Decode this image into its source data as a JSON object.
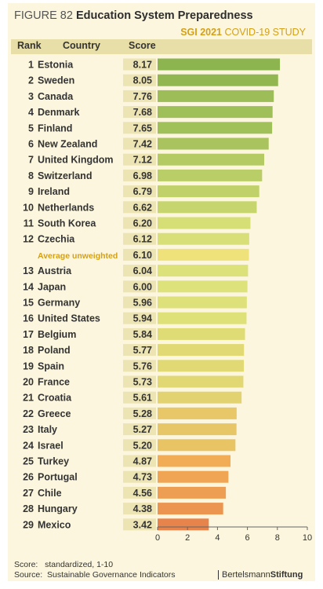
{
  "figure": {
    "number": "FIGURE 82",
    "title": "Education System Preparedness",
    "subtitle_bold": "SGI 2021",
    "subtitle_rest": "COVID-19 STUDY"
  },
  "columns": {
    "rank": "Rank",
    "country": "Country",
    "score": "Score"
  },
  "chart_data": {
    "type": "bar",
    "orientation": "horizontal",
    "title": "Education System Preparedness",
    "categories": [
      "Estonia",
      "Sweden",
      "Canada",
      "Denmark",
      "Finland",
      "New Zealand",
      "United Kingdom",
      "Switzerland",
      "Ireland",
      "Netherlands",
      "South Korea",
      "Czechia",
      "Average unweighted",
      "Austria",
      "Japan",
      "Germany",
      "United States",
      "Belgium",
      "Poland",
      "Spain",
      "France",
      "Croatia",
      "Greece",
      "Italy",
      "Israel",
      "Turkey",
      "Portugal",
      "Chile",
      "Hungary",
      "Mexico"
    ],
    "ranks": [
      "1",
      "2",
      "3",
      "4",
      "5",
      "6",
      "7",
      "8",
      "9",
      "10",
      "11",
      "12",
      "",
      "13",
      "14",
      "15",
      "16",
      "17",
      "18",
      "19",
      "20",
      "21",
      "22",
      "23",
      "24",
      "25",
      "26",
      "27",
      "28",
      "29"
    ],
    "values": [
      8.17,
      8.05,
      7.76,
      7.68,
      7.65,
      7.42,
      7.12,
      6.98,
      6.79,
      6.62,
      6.2,
      6.12,
      6.1,
      6.04,
      6.0,
      5.96,
      5.94,
      5.84,
      5.77,
      5.76,
      5.73,
      5.61,
      5.28,
      5.27,
      5.2,
      4.87,
      4.73,
      4.56,
      4.38,
      3.42
    ],
    "value_labels": [
      "8.17",
      "8.05",
      "7.76",
      "7.68",
      "7.65",
      "7.42",
      "7.12",
      "6.98",
      "6.79",
      "6.62",
      "6.20",
      "6.12",
      "6.10",
      "6.04",
      "6.00",
      "5.96",
      "5.94",
      "5.84",
      "5.77",
      "5.76",
      "5.73",
      "5.61",
      "5.28",
      "5.27",
      "5.20",
      "4.87",
      "4.73",
      "4.56",
      "4.38",
      "3.42"
    ],
    "highlight_index": 12,
    "xlim": [
      0,
      10
    ],
    "xticks": [
      "0",
      "2",
      "4",
      "6",
      "8",
      "10"
    ],
    "grid": false,
    "colors": {
      "high": "#8cb44e",
      "mid": "#dde27a",
      "low": "#f1ad55",
      "lowest": "#e6844c",
      "average": "#f0e27a",
      "average_label": "#d4a017",
      "score_box": "#ede4b4"
    }
  },
  "footer": {
    "score_label": "Score:",
    "score_text": "standardized, 1-10",
    "source_label": "Source:",
    "source_text": "Sustainable Governance Indicators"
  },
  "brand": {
    "part1": "Bertelsmann",
    "part2": "Stiftung"
  }
}
